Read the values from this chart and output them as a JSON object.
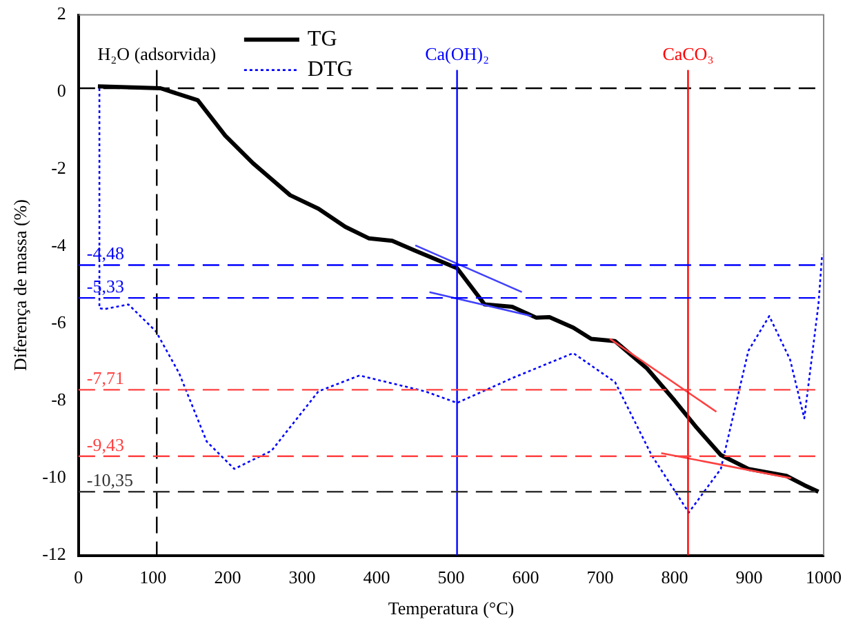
{
  "chart_data": {
    "type": "line",
    "xlabel": "Temperatura (°C)",
    "ylabel": "Diferença de massa (%)",
    "xlim": [
      0,
      1000
    ],
    "xticks": [
      0,
      100,
      200,
      300,
      400,
      500,
      600,
      700,
      800,
      900,
      1000
    ],
    "ylim": [
      -12,
      2
    ],
    "yticks": [
      -12,
      -10,
      -8,
      -6,
      -4,
      -2,
      0,
      2
    ],
    "grid": false,
    "legend": "top",
    "series": [
      {
        "name": "TG",
        "color": "#000000",
        "line_style": "solid",
        "x": [
          26,
          110,
          160,
          197,
          234,
          284,
          322,
          358,
          390,
          421,
          451,
          508,
          545,
          582,
          614,
          632,
          664,
          688,
          720,
          763,
          800,
          830,
          862,
          899,
          950,
          974,
          993
        ],
        "values": [
          0.15,
          0.1,
          -0.21,
          -1.13,
          -1.84,
          -2.67,
          -3.02,
          -3.49,
          -3.79,
          -3.85,
          -4.1,
          -4.56,
          -5.5,
          -5.56,
          -5.84,
          -5.83,
          -6.1,
          -6.39,
          -6.45,
          -7.16,
          -7.99,
          -8.7,
          -9.4,
          -9.76,
          -9.94,
          -10.18,
          -10.35
        ]
      },
      {
        "name": "DTG",
        "color": "#0000ff",
        "line_style": "dotted",
        "x": [
          28,
          28,
          35,
          67,
          104,
          135,
          172,
          209,
          259,
          322,
          377,
          465,
          508,
          583,
          664,
          720,
          769,
          819,
          862,
          899,
          927,
          955,
          974,
          993,
          998
        ],
        "values": [
          0.1,
          -5.6,
          -5.62,
          -5.5,
          -6.2,
          -7.28,
          -9.05,
          -9.76,
          -9.29,
          -7.75,
          -7.34,
          -7.75,
          -8.05,
          -7.4,
          -6.76,
          -7.51,
          -9.4,
          -10.89,
          -9.76,
          -6.7,
          -5.8,
          -6.93,
          -8.45,
          -5.5,
          -4.2
        ]
      },
      {
        "color": "#4040ff",
        "line_style": "solid",
        "x": [
          452,
          595
        ],
        "values": [
          -3.97,
          -5.18
        ]
      },
      {
        "color": "#4040ff",
        "line_style": "solid",
        "x": [
          471,
          608
        ],
        "values": [
          -5.18,
          -5.8
        ]
      },
      {
        "color": "#ff4040",
        "line_style": "solid",
        "x": [
          713,
          856
        ],
        "values": [
          -6.39,
          -8.28
        ]
      },
      {
        "color": "#ff4040",
        "line_style": "solid",
        "x": [
          782,
          956
        ],
        "values": [
          -9.35,
          -10.0
        ]
      }
    ],
    "ref_lines": [
      {
        "axis": "y",
        "value": 0.1,
        "color": "#000000",
        "line_style": "dashed"
      },
      {
        "axis": "x",
        "value": 105,
        "label": "H₂O (adsorvida)",
        "color": "#000000",
        "line_style": "dashed"
      },
      {
        "axis": "x",
        "value": 508,
        "label": "Ca(OH)₂",
        "color": "#0000ff",
        "line_style": "solid"
      },
      {
        "axis": "x",
        "value": 818,
        "label": "CaCO₃",
        "color": "#ff0000",
        "line_style": "solid"
      },
      {
        "axis": "y",
        "value": -4.48,
        "label": "-4,48",
        "color": "#0000ff",
        "line_style": "dashed"
      },
      {
        "axis": "y",
        "value": -5.33,
        "label": "-5,33",
        "color": "#0000ff",
        "line_style": "dashed"
      },
      {
        "axis": "y",
        "value": -7.71,
        "label": "-7,71",
        "color": "#ff4040",
        "line_style": "dashed"
      },
      {
        "axis": "y",
        "value": -9.43,
        "label": "-9,43",
        "color": "#ff4040",
        "line_style": "dashed"
      },
      {
        "axis": "y",
        "value": -10.35,
        "label": "-10,35",
        "color": "#333333",
        "line_style": "dashed"
      }
    ]
  }
}
